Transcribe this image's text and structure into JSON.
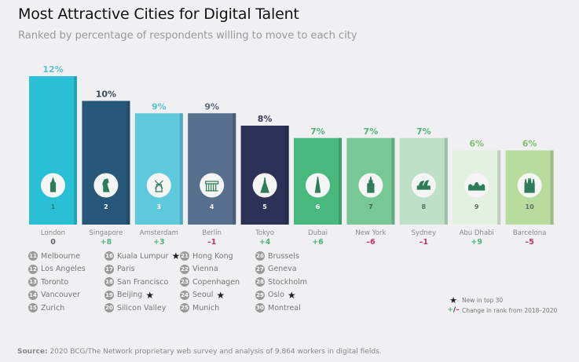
{
  "header": {
    "title": "Most Attractive Cities for Digital Talent",
    "subtitle": "Ranked by percentage of respondents willing to move to each city"
  },
  "chart_data": {
    "type": "bar",
    "title": "Most Attractive Cities for Digital Talent",
    "subtitle": "Ranked by percentage of respondents willing to move to each city",
    "xlabel": "",
    "ylabel": "",
    "ylim": [
      0,
      12
    ],
    "grid": false,
    "categories": [
      "London",
      "Singapore",
      "Amsterdam",
      "Berlin",
      "Tokyo",
      "Dubai",
      "New York",
      "Sydney",
      "Abu Dhabi",
      "Barcelona"
    ],
    "values": [
      12,
      10,
      9,
      9,
      8,
      7,
      7,
      7,
      6,
      6
    ],
    "value_labels": [
      "12%",
      "10%",
      "9%",
      "9%",
      "8%",
      "7%",
      "7%",
      "7%",
      "6%",
      "6%"
    ],
    "ranks": [
      "1",
      "2",
      "3",
      "4",
      "5",
      "6",
      "7",
      "8",
      "9",
      "10"
    ],
    "rank_changes": [
      "0",
      "+8",
      "+3",
      "–1",
      "+4",
      "+6",
      "–6",
      "–1",
      "+9",
      "–5"
    ],
    "icons": [
      "big-ben-icon",
      "merlion-icon",
      "windmill-icon",
      "brandenburg-gate-icon",
      "tokyo-tower-icon",
      "burj-khalifa-icon",
      "empire-state-icon",
      "opera-house-icon",
      "mosque-icon",
      "sagrada-familia-icon"
    ],
    "bar_colors": [
      "#29c0d6",
      "#27587a",
      "#5ec8dc",
      "#556f8d",
      "#2c3256",
      "#48b87c",
      "#78c895",
      "#bde0c7",
      "#e3f1e0",
      "#b8dc9e"
    ],
    "label_colors": [
      "#5bc2d3",
      "#3b4a5a",
      "#5bc2d3",
      "#5d6b7c",
      "#3b3f55",
      "#4eb57d",
      "#4eb57d",
      "#4eb57d",
      "#7cc36d",
      "#7cc36d"
    ],
    "rank_colors": [
      "#2a7a87",
      "#ffffff",
      "#ffffff",
      "#ffffff",
      "#ffffff",
      "#ffffff",
      "#3f6a52",
      "#5d6f63",
      "#5d6f63",
      "#5d6f63"
    ]
  },
  "more_cities": [
    {
      "rank": "11",
      "name": "Melbourne",
      "new": false
    },
    {
      "rank": "12",
      "name": "Los Angeles",
      "new": false
    },
    {
      "rank": "13",
      "name": "Toronto",
      "new": false
    },
    {
      "rank": "14",
      "name": "Vancouver",
      "new": false
    },
    {
      "rank": "15",
      "name": "Zurich",
      "new": false
    },
    {
      "rank": "16",
      "name": "Kuala Lumpur",
      "new": true
    },
    {
      "rank": "17",
      "name": "Paris",
      "new": false
    },
    {
      "rank": "18",
      "name": "San Francisco",
      "new": false
    },
    {
      "rank": "19",
      "name": "Beijing",
      "new": true
    },
    {
      "rank": "20",
      "name": "Silicon Valley",
      "new": false
    },
    {
      "rank": "21",
      "name": "Hong Kong",
      "new": false
    },
    {
      "rank": "22",
      "name": "Vienna",
      "new": false
    },
    {
      "rank": "23",
      "name": "Copenhagen",
      "new": false
    },
    {
      "rank": "24",
      "name": "Seoul",
      "new": true
    },
    {
      "rank": "25",
      "name": "Munich",
      "new": false
    },
    {
      "rank": "26",
      "name": "Brussels",
      "new": false
    },
    {
      "rank": "27",
      "name": "Geneva",
      "new": false
    },
    {
      "rank": "28",
      "name": "Stockholm",
      "new": false
    },
    {
      "rank": "29",
      "name": "Oslo",
      "new": true
    },
    {
      "rank": "30",
      "name": "Montreal",
      "new": false
    }
  ],
  "key": {
    "new_label": "New in top 30",
    "change_symbol_plus": "+",
    "change_symbol_slash": "/",
    "change_symbol_minus": "–",
    "change_label": "Change in rank from 2018–2020"
  },
  "colors": {
    "positive": "#4eb57d",
    "negative": "#c0306a",
    "neutral": "#666666",
    "icon": "#2e7d5a"
  },
  "footer": {
    "source_label": "Source:",
    "source_text": " 2020 BCG/The Network proprietary web survey and analysis of 9,864 workers in digital fields."
  }
}
